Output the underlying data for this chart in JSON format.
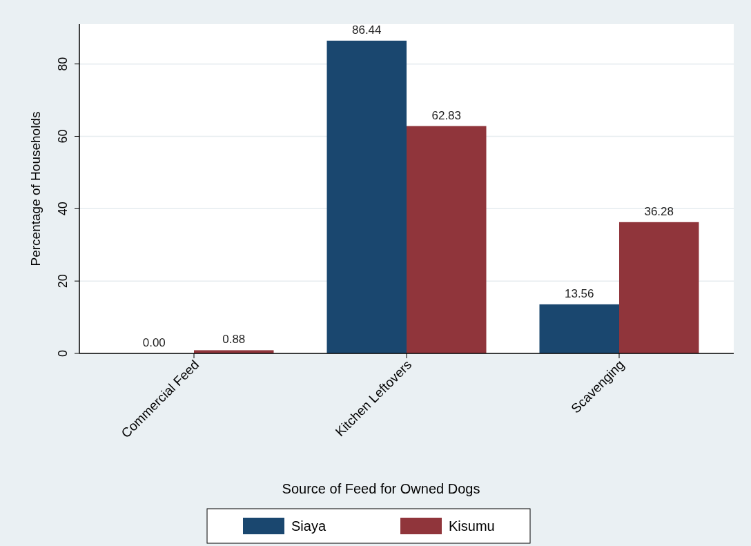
{
  "chart_data": {
    "type": "bar",
    "xlabel": "Source of Feed for Owned Dogs",
    "ylabel": "Percentage of Households",
    "categories": [
      "Commercial Feed",
      "Kitchen Leftovers",
      "Scavenging"
    ],
    "series": [
      {
        "name": "Siaya",
        "color": "#1a476f",
        "values": [
          0,
          86.44,
          13.56
        ],
        "value_labels": [
          "0.00",
          "86.44",
          "13.56"
        ]
      },
      {
        "name": "Kisumu",
        "color": "#90353b",
        "values": [
          0.88,
          62.83,
          36.28
        ],
        "value_labels": [
          "0.88",
          "62.83",
          "36.28"
        ]
      }
    ],
    "ylim": [
      0,
      91
    ],
    "yticks": [
      0,
      20,
      40,
      60,
      80
    ],
    "grid": "y",
    "legend": "bottom"
  }
}
